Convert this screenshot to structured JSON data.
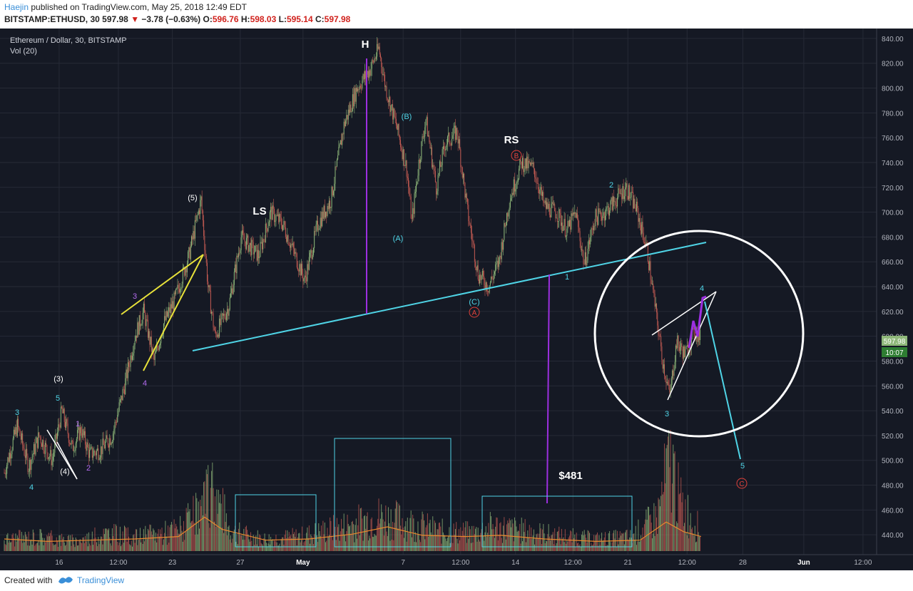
{
  "header": {
    "author": "Haejin",
    "published_text": "published on TradingView.com, May 25, 2018 12:49 EDT",
    "symbol": "BITSTAMP:ETHUSD, 30",
    "last": "597.98",
    "change": "−3.78 (−0.63%)",
    "o_label": "O:",
    "o_value": "596.76",
    "h_label": "H:",
    "h_value": "598.03",
    "l_label": "L:",
    "l_value": "595.14",
    "c_label": "C:",
    "c_value": "597.98"
  },
  "legend": {
    "title": "Ethereum / Dollar, 30, BITSTAMP",
    "indicator": "Vol (20)"
  },
  "price_badge": {
    "price": "597.98",
    "countdown": "10:07"
  },
  "footer": {
    "created_with": "Created with",
    "brand": "TradingView"
  },
  "colors": {
    "background": "#151924",
    "grid": "#262a36",
    "up": "#8fb87a",
    "down": "#c25a52",
    "neckline": "#4fd4e6",
    "purple": "#9c2fe0",
    "yellow": "#e8e23a",
    "white": "#ffffff",
    "red_label": "#e0413a",
    "volume_ma": "#e8882d"
  },
  "chart_data": {
    "type": "candlestick",
    "title": "Ethereum / Dollar, 30, BITSTAMP",
    "ylim": [
      424,
      848
    ],
    "y_ticks": [
      440,
      460,
      480,
      500,
      520,
      540,
      560,
      580,
      600,
      620,
      640,
      660,
      680,
      700,
      720,
      740,
      760,
      780,
      800,
      820,
      840
    ],
    "x_ticks": [
      "16",
      "12:00",
      "23",
      "27",
      "May",
      "7",
      "12:00",
      "14",
      "12:00",
      "21",
      "12:00",
      "28",
      "Jun",
      "12:00"
    ],
    "x_tick_pos": [
      0.063,
      0.131,
      0.193,
      0.271,
      0.343,
      0.458,
      0.524,
      0.587,
      0.653,
      0.716,
      0.784,
      0.848,
      0.918,
      0.986
    ],
    "last_x": 0.8,
    "price_path": [
      [
        0.0,
        490
      ],
      [
        0.015,
        528
      ],
      [
        0.028,
        495
      ],
      [
        0.04,
        520
      ],
      [
        0.055,
        500
      ],
      [
        0.066,
        540
      ],
      [
        0.078,
        510
      ],
      [
        0.088,
        525
      ],
      [
        0.098,
        505
      ],
      [
        0.11,
        508
      ],
      [
        0.124,
        520
      ],
      [
        0.138,
        560
      ],
      [
        0.15,
        600
      ],
      [
        0.16,
        620
      ],
      [
        0.172,
        580
      ],
      [
        0.183,
        610
      ],
      [
        0.196,
        630
      ],
      [
        0.212,
        665
      ],
      [
        0.226,
        710
      ],
      [
        0.234,
        640
      ],
      [
        0.242,
        600
      ],
      [
        0.258,
        625
      ],
      [
        0.272,
        680
      ],
      [
        0.292,
        665
      ],
      [
        0.306,
        700
      ],
      [
        0.32,
        690
      ],
      [
        0.334,
        665
      ],
      [
        0.345,
        645
      ],
      [
        0.36,
        690
      ],
      [
        0.375,
        710
      ],
      [
        0.39,
        770
      ],
      [
        0.405,
        800
      ],
      [
        0.42,
        815
      ],
      [
        0.43,
        832
      ],
      [
        0.438,
        800
      ],
      [
        0.45,
        770
      ],
      [
        0.462,
        735
      ],
      [
        0.468,
        692
      ],
      [
        0.476,
        740
      ],
      [
        0.484,
        775
      ],
      [
        0.496,
        720
      ],
      [
        0.506,
        755
      ],
      [
        0.52,
        765
      ],
      [
        0.532,
        700
      ],
      [
        0.544,
        650
      ],
      [
        0.556,
        640
      ],
      [
        0.568,
        660
      ],
      [
        0.58,
        710
      ],
      [
        0.594,
        740
      ],
      [
        0.608,
        735
      ],
      [
        0.62,
        705
      ],
      [
        0.634,
        700
      ],
      [
        0.646,
        685
      ],
      [
        0.656,
        700
      ],
      [
        0.666,
        658
      ],
      [
        0.678,
        695
      ],
      [
        0.69,
        700
      ],
      [
        0.702,
        710
      ],
      [
        0.714,
        720
      ],
      [
        0.726,
        702
      ],
      [
        0.738,
        670
      ],
      [
        0.748,
        620
      ],
      [
        0.756,
        580
      ],
      [
        0.764,
        552
      ],
      [
        0.772,
        595
      ],
      [
        0.782,
        585
      ],
      [
        0.792,
        605
      ],
      [
        0.8,
        598
      ]
    ],
    "volume_scale_max": 100,
    "volume_points": [
      [
        0.0,
        12
      ],
      [
        0.04,
        15
      ],
      [
        0.08,
        10
      ],
      [
        0.12,
        18
      ],
      [
        0.15,
        14
      ],
      [
        0.2,
        22
      ],
      [
        0.226,
        40
      ],
      [
        0.24,
        65
      ],
      [
        0.26,
        20
      ],
      [
        0.3,
        12
      ],
      [
        0.34,
        15
      ],
      [
        0.39,
        25
      ],
      [
        0.43,
        35
      ],
      [
        0.46,
        30
      ],
      [
        0.5,
        20
      ],
      [
        0.54,
        18
      ],
      [
        0.56,
        25
      ],
      [
        0.6,
        20
      ],
      [
        0.64,
        15
      ],
      [
        0.68,
        12
      ],
      [
        0.72,
        14
      ],
      [
        0.75,
        35
      ],
      [
        0.765,
        95
      ],
      [
        0.775,
        50
      ],
      [
        0.8,
        20
      ]
    ],
    "volume_ma": [
      [
        0.0,
        10
      ],
      [
        0.05,
        8
      ],
      [
        0.1,
        9
      ],
      [
        0.15,
        10
      ],
      [
        0.2,
        12
      ],
      [
        0.23,
        28
      ],
      [
        0.25,
        18
      ],
      [
        0.3,
        9
      ],
      [
        0.35,
        10
      ],
      [
        0.4,
        14
      ],
      [
        0.44,
        20
      ],
      [
        0.48,
        13
      ],
      [
        0.53,
        12
      ],
      [
        0.57,
        13
      ],
      [
        0.62,
        10
      ],
      [
        0.68,
        8
      ],
      [
        0.73,
        9
      ],
      [
        0.76,
        24
      ],
      [
        0.78,
        16
      ],
      [
        0.8,
        12
      ]
    ]
  },
  "annotations": {
    "pattern_labels": {
      "H": "H",
      "LS": "LS",
      "RS": "RS"
    },
    "target_label": "$481",
    "circled_A": "A",
    "circled_B": "B",
    "circled_C": "C",
    "wave_labels": {
      "w3_top_left": "3",
      "w4_bottom_left": "4",
      "w5_top": "5",
      "w3_paren": "(3)",
      "w4_paren": "(4)",
      "w1_purple": "1",
      "w2_purple": "2",
      "w3_yellow": "3",
      "w4_yellow": "4",
      "w5_paren": "(5)",
      "A_paren": "(A)",
      "B_paren": "(B)",
      "C_paren": "(C)",
      "w1_neck": "1",
      "w2_peak": "2",
      "w3_low": "3",
      "w4_target": "4",
      "w5_target": "5"
    }
  }
}
